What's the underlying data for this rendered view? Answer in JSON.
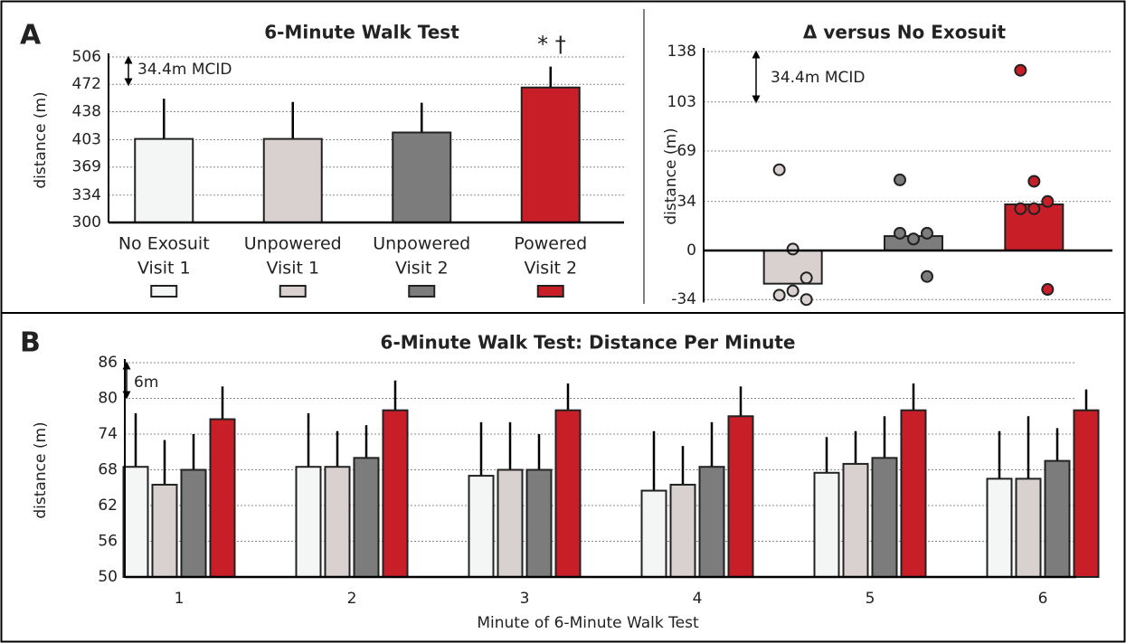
{
  "chart_data": [
    {
      "type": "bar",
      "panel_label": "A",
      "title": "6-Minute Walk Test",
      "ylabel": "distance (m)",
      "categories": [
        [
          "No Exosuit",
          "Visit 1"
        ],
        [
          "Unpowered",
          "Visit 1"
        ],
        [
          "Unpowered",
          "Visit 2"
        ],
        [
          "Powered",
          "Visit 2"
        ]
      ],
      "values": [
        404,
        404,
        412,
        468
      ],
      "errors": [
        50,
        46,
        37,
        26
      ],
      "colors": [
        "#f4f6f5",
        "#d9d0d0",
        "#7b7c7b",
        "#c81e28"
      ],
      "ylim": [
        300,
        506
      ],
      "yticks": [
        300,
        334,
        369,
        403,
        438,
        472,
        506
      ],
      "grid": true,
      "annotations": [
        "34.4m MCID",
        "* †"
      ]
    },
    {
      "type": "bar",
      "title": "Δ versus No Exosuit",
      "ylabel": "distance (m)",
      "values": [
        -23,
        10,
        32
      ],
      "points": [
        [
          56,
          1,
          -19,
          -31,
          -28,
          -34
        ],
        [
          49,
          8,
          12,
          12,
          8,
          -18
        ],
        [
          125,
          48,
          34,
          29,
          29,
          -27
        ]
      ],
      "colors": [
        "#d9d0d0",
        "#7b7c7b",
        "#c81e28"
      ],
      "ylim": [
        -36,
        138
      ],
      "yticks": [
        -34,
        0,
        34,
        69,
        103,
        138
      ],
      "grid": true,
      "annotations": [
        "34.4m MCID"
      ]
    },
    {
      "type": "grouped_bar",
      "panel_label": "B",
      "title": "6-Minute Walk Test: Distance Per Minute",
      "ylabel": "distance (m)",
      "xlabel": "Minute of 6-Minute Walk Test",
      "categories": [
        "1",
        "2",
        "3",
        "4",
        "5",
        "6"
      ],
      "series": [
        {
          "color": "#f4f6f5",
          "values": [
            68.5,
            68.5,
            67,
            64.5,
            67.5,
            66.5
          ],
          "errors": [
            9,
            9,
            9,
            10,
            6,
            8
          ]
        },
        {
          "color": "#d9d0d0",
          "values": [
            65.5,
            68.5,
            68,
            65.5,
            69,
            66.5
          ],
          "errors": [
            7.5,
            6,
            8,
            6.5,
            5.5,
            10.5
          ]
        },
        {
          "color": "#7b7c7b",
          "values": [
            68,
            70,
            68,
            68.5,
            70,
            69.5
          ],
          "errors": [
            6,
            5.5,
            6,
            7.5,
            7,
            5.5
          ]
        },
        {
          "color": "#c81e28",
          "values": [
            76.5,
            78,
            78,
            77,
            78,
            78
          ],
          "errors": [
            5.5,
            5,
            4.5,
            5,
            4.5,
            3.5
          ]
        }
      ],
      "ylim": [
        50,
        86
      ],
      "yticks": [
        50,
        56,
        62,
        68,
        74,
        80,
        86
      ],
      "grid": true,
      "annotations": [
        "6m"
      ]
    }
  ]
}
